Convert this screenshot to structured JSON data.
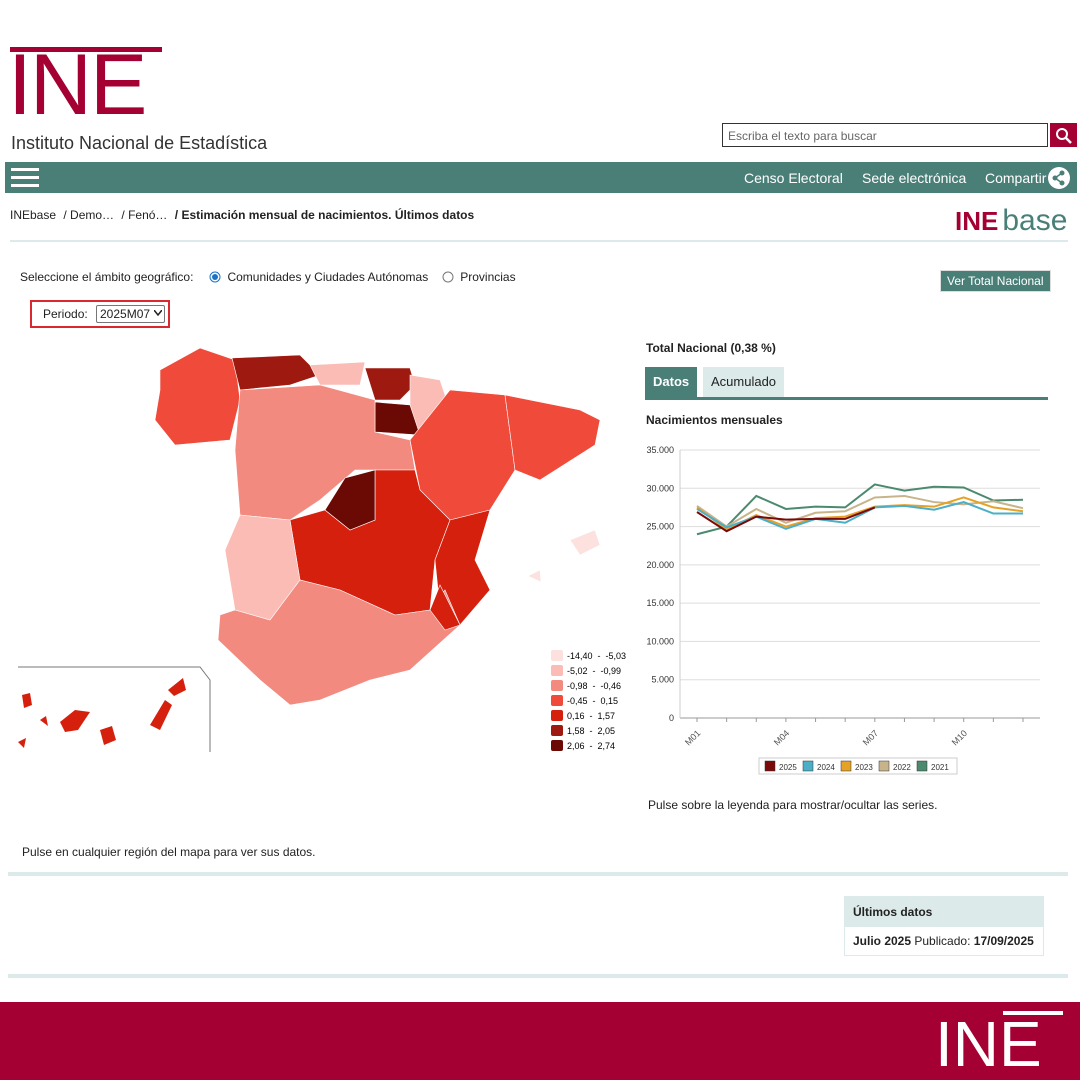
{
  "header": {
    "logo": "INE",
    "subtitle": "Instituto Nacional de Estadística",
    "search_placeholder": "Escriba el texto para buscar"
  },
  "nav": {
    "links": [
      "Censo Electoral",
      "Sede electrónica",
      "Compartir"
    ]
  },
  "breadcrumb": {
    "items": [
      "INEbase",
      "/ Demo…",
      "/ Fenó…",
      "/ Estimación mensual de nacimientos. Últimos datos"
    ],
    "logo": [
      "INE",
      "base"
    ]
  },
  "controls": {
    "scope_label": "Seleccione el ámbito geográfico:",
    "options": [
      "Comunidades y Ciudades Autónomas",
      "Provincias"
    ],
    "button": "Ver Total Nacional",
    "period_label": "Periodo:",
    "period_value": "2025M07"
  },
  "map": {
    "legend": [
      {
        "label": "-14,40  -  -5,03",
        "color": "#fce1de"
      },
      {
        "label": "-5,02  -  -0,99",
        "color": "#fbbcb5"
      },
      {
        "label": "-0,98  -  -0,46",
        "color": "#f28a80"
      },
      {
        "label": "-0,45  -  0,15",
        "color": "#f04a3a"
      },
      {
        "label": "0,16  -  1,57",
        "color": "#d6200e"
      },
      {
        "label": "1,58  -  2,05",
        "color": "#9e1a10"
      },
      {
        "label": "2,06  -  2,74",
        "color": "#6b0a05"
      }
    ],
    "note": "Pulse en cualquier región del mapa para ver sus datos."
  },
  "panel": {
    "title": "Total Nacional (0,38 %)",
    "tabs": [
      "Datos",
      "Acumulado"
    ],
    "note": "Pulse sobre la leyenda para mostrar/ocultar las series."
  },
  "chart_data": {
    "type": "line",
    "title": "Nacimientos mensuales",
    "categories": [
      "M01",
      null,
      null,
      "M04",
      null,
      null,
      "M07",
      null,
      null,
      "M10",
      null,
      null
    ],
    "ylim": [
      0,
      35000
    ],
    "yticks": [
      0,
      {
        "value": 5000,
        "label": "5.000"
      },
      {
        "value": 10000,
        "label": "10.000"
      },
      {
        "value": 15000,
        "label": "15.000"
      },
      {
        "value": 20000,
        "label": "20.000"
      },
      {
        "value": 25000,
        "label": "25.000"
      },
      {
        "value": 30000,
        "label": "30.000"
      },
      {
        "value": 35000,
        "label": "35.000"
      }
    ],
    "grid": true,
    "series": [
      {
        "name": "2025",
        "color": "#7a0a0a",
        "values": [
          26900,
          24400,
          26300,
          25900,
          26000,
          26000,
          27500,
          null,
          null,
          null,
          null,
          null
        ]
      },
      {
        "name": "2024",
        "color": "#4bafc8",
        "values": [
          27300,
          24900,
          26300,
          24700,
          26000,
          25500,
          27500,
          27700,
          27200,
          28200,
          26700,
          26700
        ]
      },
      {
        "name": "2023",
        "color": "#e6a127",
        "values": [
          27500,
          24600,
          26500,
          25000,
          26100,
          26300,
          27600,
          27800,
          27600,
          28800,
          27500,
          27000
        ]
      },
      {
        "name": "2022",
        "color": "#c8b48a",
        "values": [
          27700,
          25000,
          27300,
          25500,
          26800,
          27000,
          28800,
          29000,
          28200,
          27900,
          28300,
          27400
        ]
      },
      {
        "name": "2021",
        "color": "#4b8a6e",
        "values": [
          24000,
          25000,
          29000,
          27300,
          27600,
          27500,
          30500,
          29700,
          30200,
          30100,
          28400,
          28500
        ]
      }
    ]
  },
  "latest": {
    "title": "Últimos datos",
    "period": "Julio 2025",
    "published_label": "Publicado:",
    "published_date": "17/09/2025"
  },
  "footer": {
    "logo": "INE"
  }
}
